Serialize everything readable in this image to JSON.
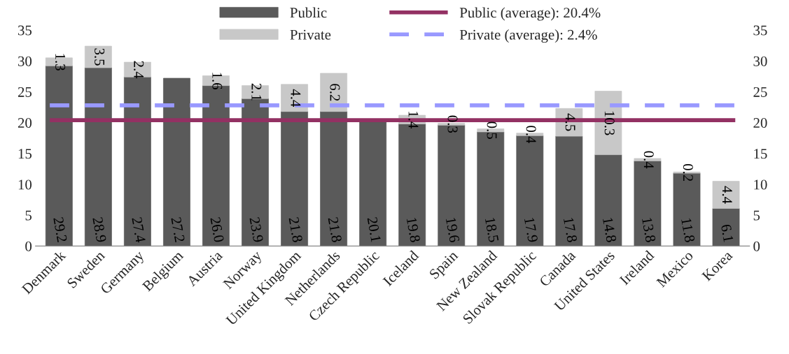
{
  "chart_data": {
    "type": "bar",
    "stacked": true,
    "categories": [
      "Denmark",
      "Sweden",
      "Germany",
      "Belgium",
      "Austria",
      "Norway",
      "United Kingdom",
      "Netherlands",
      "Czech Republic",
      "Iceland",
      "Spain",
      "New Zealand",
      "Slovak Republic",
      "Canada",
      "United States",
      "Ireland",
      "Mexico",
      "Korea"
    ],
    "series": [
      {
        "name": "Public",
        "color": "#5a5a5a",
        "values": [
          29.2,
          28.9,
          27.4,
          27.2,
          26.0,
          23.9,
          21.8,
          21.8,
          20.1,
          19.8,
          19.6,
          18.5,
          17.9,
          17.8,
          14.8,
          13.8,
          11.8,
          6.1
        ],
        "value_labels": [
          "29.2",
          "28.9",
          "27.4",
          "27.2",
          "26.0",
          "23.9",
          "21.8",
          "21.8",
          "20.1",
          "19.8",
          "19.6",
          "18.5",
          "17.9",
          "17.8",
          "14.8",
          "13.8",
          "11.8",
          "6.1"
        ]
      },
      {
        "name": "Private",
        "color": "#c8c8c8",
        "values": [
          1.3,
          3.5,
          2.4,
          null,
          1.6,
          2.1,
          4.4,
          6.2,
          null,
          1.4,
          0.3,
          0.5,
          0.4,
          4.5,
          10.3,
          0.4,
          0.2,
          4.4
        ]
      }
    ],
    "data_labels": true,
    "ref_lines": [
      {
        "axis": "y",
        "value": 20.4,
        "label": "Public (average): 20.4%",
        "color": "#933163",
        "line_style": "solid"
      },
      {
        "axis": "y",
        "value": 22.8,
        "color": "#9999ff",
        "line_style": "dashed"
      }
    ],
    "annotations": [
      "Private (average): 2.4%"
    ],
    "ylim": [
      0,
      35
    ],
    "yticks": [
      0,
      5,
      10,
      15,
      20,
      25,
      30,
      35
    ],
    "y2lim": [
      0,
      35
    ],
    "y2ticks": [
      0,
      5,
      10,
      15,
      20,
      25,
      30,
      35
    ],
    "grid": false,
    "legend": "top"
  }
}
